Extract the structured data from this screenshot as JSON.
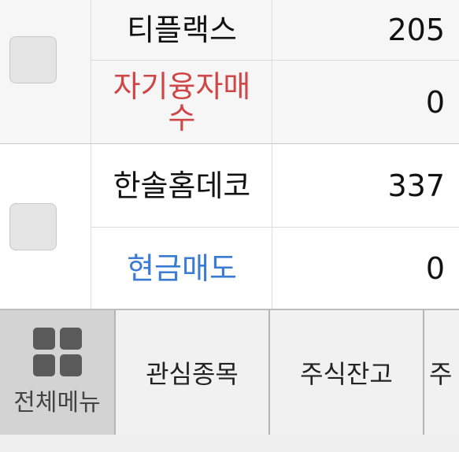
{
  "rows": [
    {
      "name": "티플랙스",
      "price": "205",
      "sub_label": "자기융자매수",
      "sub_value": "0",
      "sub_color": "#d04545"
    },
    {
      "name": "한솔홈데코",
      "price": "337",
      "sub_label": "현금매도",
      "sub_value": "0",
      "sub_color": "#3a7bd5"
    }
  ],
  "tabbar": {
    "menu_label": "전체메뉴",
    "menu_icon": "grid-menu-icon",
    "tab1": "관심종목",
    "tab2": "주식잔고",
    "tab3_partial": "주"
  }
}
